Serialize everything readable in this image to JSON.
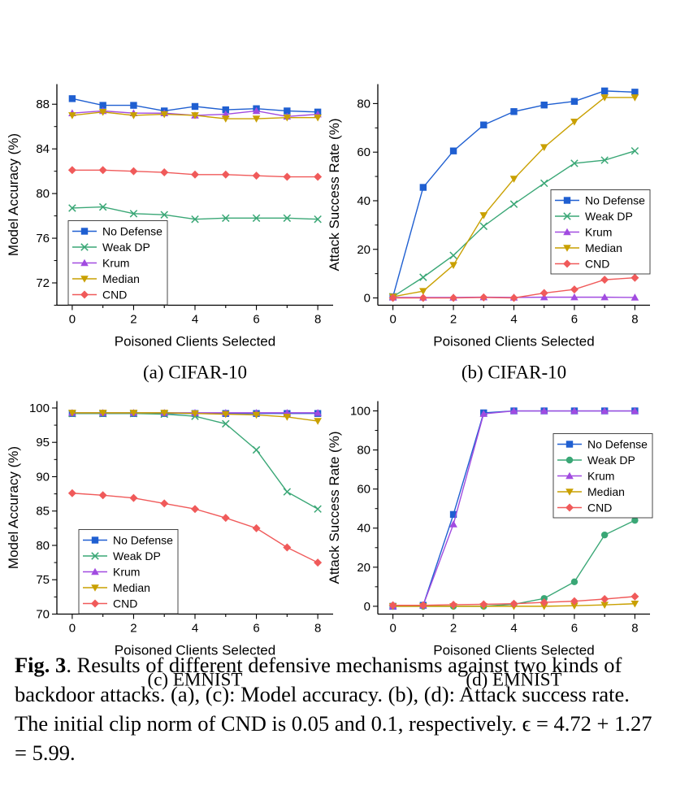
{
  "chart_data": [
    {
      "type": "line",
      "sublabel": "(a)  CIFAR-10",
      "xlabel": "Poisoned Clients Selected",
      "ylabel": "Model Accuracy (%)",
      "x": [
        0,
        1,
        2,
        3,
        4,
        5,
        6,
        7,
        8
      ],
      "xticks": [
        0,
        2,
        4,
        6,
        8
      ],
      "yticks": [
        72,
        76,
        80,
        84,
        88
      ],
      "xlim": [
        -0.5,
        8.5
      ],
      "ylim": [
        70,
        89.8
      ],
      "legend_position": "bottom-left",
      "series": [
        {
          "name": "No Defense",
          "color": "#1f5fd1",
          "marker": "square",
          "values": [
            88.5,
            87.9,
            87.9,
            87.4,
            87.8,
            87.5,
            87.6,
            87.4,
            87.3
          ]
        },
        {
          "name": "Weak DP",
          "color": "#3aa776",
          "marker": "x",
          "values": [
            78.7,
            78.8,
            78.2,
            78.1,
            77.7,
            77.8,
            77.8,
            77.8,
            77.7
          ]
        },
        {
          "name": "Krum",
          "color": "#a14be0",
          "marker": "triangle-up",
          "values": [
            87.2,
            87.4,
            87.2,
            87.2,
            87.0,
            87.1,
            87.4,
            86.9,
            87.1
          ]
        },
        {
          "name": "Median",
          "color": "#c9a000",
          "marker": "triangle-down",
          "values": [
            87.0,
            87.3,
            87.0,
            87.1,
            87.0,
            86.7,
            86.7,
            86.8,
            86.8
          ]
        },
        {
          "name": "CND",
          "color": "#f05a5a",
          "marker": "diamond",
          "values": [
            82.1,
            82.1,
            82.0,
            81.9,
            81.7,
            81.7,
            81.6,
            81.5,
            81.5
          ]
        }
      ]
    },
    {
      "type": "line",
      "sublabel": "(b)  CIFAR-10",
      "xlabel": "Poisoned Clients Selected",
      "ylabel": "Attack Success Rate (%)",
      "x": [
        0,
        1,
        2,
        3,
        4,
        5,
        6,
        7,
        8
      ],
      "xticks": [
        0,
        2,
        4,
        6,
        8
      ],
      "yticks": [
        0,
        20,
        40,
        60,
        80
      ],
      "xlim": [
        -0.5,
        8.5
      ],
      "ylim": [
        -3,
        88
      ],
      "legend_position": "right-middle",
      "series": [
        {
          "name": "No Defense",
          "color": "#1f5fd1",
          "marker": "square",
          "values": [
            0.5,
            45.5,
            60.5,
            71.2,
            76.7,
            79.4,
            80.9,
            85.2,
            84.7
          ]
        },
        {
          "name": "Weak DP",
          "color": "#3aa776",
          "marker": "x",
          "values": [
            0.5,
            8.5,
            17.5,
            29.5,
            38.6,
            47.2,
            55.4,
            56.7,
            60.5
          ]
        },
        {
          "name": "Krum",
          "color": "#a14be0",
          "marker": "triangle-up",
          "values": [
            0.2,
            0.2,
            0.2,
            0.3,
            0.2,
            0.3,
            0.3,
            0.3,
            0.2
          ]
        },
        {
          "name": "Median",
          "color": "#c9a000",
          "marker": "triangle-down",
          "values": [
            0.5,
            2.8,
            13.5,
            34.0,
            49.0,
            62.0,
            72.5,
            82.5,
            82.5
          ]
        },
        {
          "name": "CND",
          "color": "#f05a5a",
          "marker": "diamond",
          "values": [
            0.0,
            0.0,
            0.0,
            0.2,
            0.0,
            2.0,
            3.5,
            7.5,
            8.3
          ]
        }
      ]
    },
    {
      "type": "line",
      "sublabel": "(c)  EMNIST",
      "xlabel": "Poisoned Clients Selected",
      "ylabel": "Model Accuracy (%)",
      "x": [
        0,
        1,
        2,
        3,
        4,
        5,
        6,
        7,
        8
      ],
      "xticks": [
        0,
        2,
        4,
        6,
        8
      ],
      "yticks": [
        70,
        75,
        80,
        85,
        90,
        95,
        100
      ],
      "xlim": [
        -0.5,
        8.5
      ],
      "ylim": [
        70,
        101
      ],
      "legend_position": "bottom-left",
      "series": [
        {
          "name": "No Defense",
          "color": "#1f5fd1",
          "marker": "square",
          "values": [
            99.2,
            99.2,
            99.2,
            99.2,
            99.2,
            99.2,
            99.2,
            99.2,
            99.2
          ]
        },
        {
          "name": "Weak DP",
          "color": "#3aa776",
          "marker": "x",
          "values": [
            99.2,
            99.2,
            99.2,
            99.1,
            98.8,
            97.7,
            93.9,
            87.8,
            85.3
          ]
        },
        {
          "name": "Krum",
          "color": "#a14be0",
          "marker": "triangle-up",
          "values": [
            99.3,
            99.3,
            99.3,
            99.3,
            99.3,
            99.3,
            99.3,
            99.3,
            99.3
          ]
        },
        {
          "name": "Median",
          "color": "#c9a000",
          "marker": "triangle-down",
          "values": [
            99.3,
            99.3,
            99.3,
            99.3,
            99.2,
            99.1,
            99.0,
            98.7,
            98.1
          ]
        },
        {
          "name": "CND",
          "color": "#f05a5a",
          "marker": "diamond",
          "values": [
            87.6,
            87.3,
            86.9,
            86.1,
            85.3,
            84.0,
            82.5,
            79.7,
            77.5
          ]
        }
      ]
    },
    {
      "type": "line",
      "sublabel": "(d)  EMNIST",
      "xlabel": "Poisoned Clients Selected",
      "ylabel": "Attack Success Rate (%)",
      "x": [
        0,
        1,
        2,
        3,
        4,
        5,
        6,
        7,
        8
      ],
      "xticks": [
        0,
        2,
        4,
        6,
        8
      ],
      "yticks": [
        0,
        20,
        40,
        60,
        80,
        100
      ],
      "xlim": [
        -0.5,
        8.5
      ],
      "ylim": [
        -4,
        105
      ],
      "legend_position": "top-right",
      "series": [
        {
          "name": "No Defense",
          "color": "#1f5fd1",
          "marker": "square",
          "values": [
            0.0,
            0.5,
            47.0,
            99.0,
            100.0,
            100.0,
            100.0,
            100.0,
            100.0
          ]
        },
        {
          "name": "Weak DP",
          "color": "#3aa776",
          "marker": "circle",
          "values": [
            0.0,
            0.0,
            0.0,
            0.0,
            1.0,
            4.0,
            12.5,
            36.5,
            44.0
          ]
        },
        {
          "name": "Krum",
          "color": "#a14be0",
          "marker": "triangle-up",
          "values": [
            0.0,
            0.5,
            42.0,
            98.5,
            100.0,
            100.0,
            100.0,
            100.0,
            100.0
          ]
        },
        {
          "name": "Median",
          "color": "#c9a000",
          "marker": "triangle-down",
          "values": [
            0.0,
            0.0,
            0.0,
            0.0,
            0.0,
            0.0,
            0.3,
            0.7,
            1.3
          ]
        },
        {
          "name": "CND",
          "color": "#f05a5a",
          "marker": "diamond",
          "values": [
            0.5,
            0.5,
            0.8,
            1.0,
            1.3,
            2.0,
            2.6,
            3.7,
            5.0
          ]
        }
      ]
    }
  ],
  "caption": {
    "label": "Fig. 3",
    "text": ". Results of different defensive mechanisms against two kinds of backdoor attacks. (a), (c): Model accuracy. (b), (d): Attack success rate. The initial clip norm of CND is 0.05 and 0.1, respectively. ϵ = 4.72 + 1.27 = 5.99."
  }
}
